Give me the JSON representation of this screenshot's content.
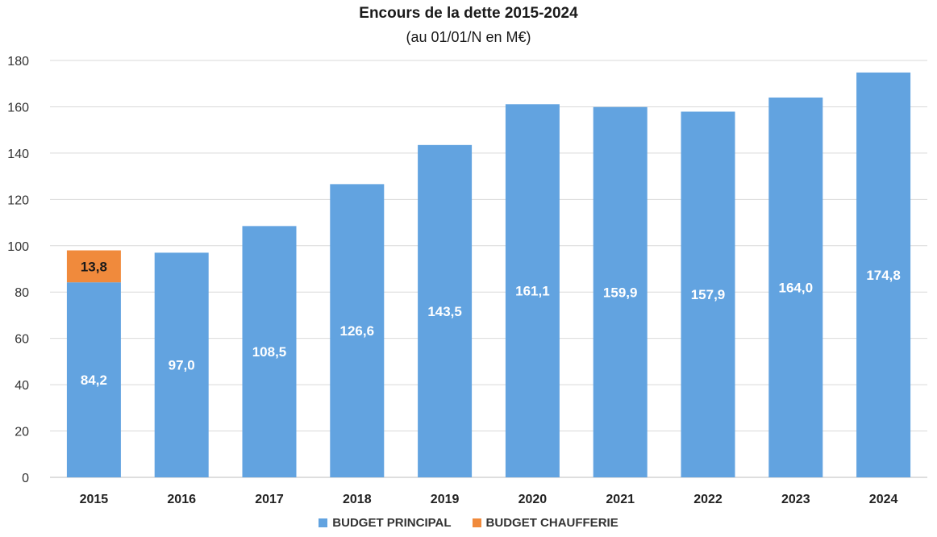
{
  "chart_data": {
    "type": "bar",
    "stacked": true,
    "title": "Encours de la dette 2015-2024",
    "subtitle": "(au 01/01/N en M€)",
    "categories": [
      "2015",
      "2016",
      "2017",
      "2018",
      "2019",
      "2020",
      "2021",
      "2022",
      "2023",
      "2024"
    ],
    "series": [
      {
        "name": "BUDGET PRINCIPAL",
        "color": "#62a3e0",
        "values": [
          84.2,
          97.0,
          108.5,
          126.6,
          143.5,
          161.1,
          159.9,
          157.9,
          164.0,
          174.8
        ],
        "labels": [
          "84,2",
          "97,0",
          "108,5",
          "126,6",
          "143,5",
          "161,1",
          "159,9",
          "157,9",
          "164,0",
          "174,8"
        ]
      },
      {
        "name": "BUDGET CHAUFFERIE",
        "color": "#f08a3c",
        "values": [
          13.8,
          0,
          0,
          0,
          0,
          0,
          0,
          0,
          0,
          0
        ],
        "labels": [
          "13,8",
          "",
          "",
          "",
          "",
          "",
          "",
          "",
          "",
          ""
        ]
      }
    ],
    "y_ticks": [
      "0",
      "20",
      "40",
      "60",
      "80",
      "100",
      "120",
      "140",
      "160",
      "180"
    ],
    "ylim": [
      0,
      180
    ],
    "grid": true,
    "legend_position": "bottom"
  }
}
